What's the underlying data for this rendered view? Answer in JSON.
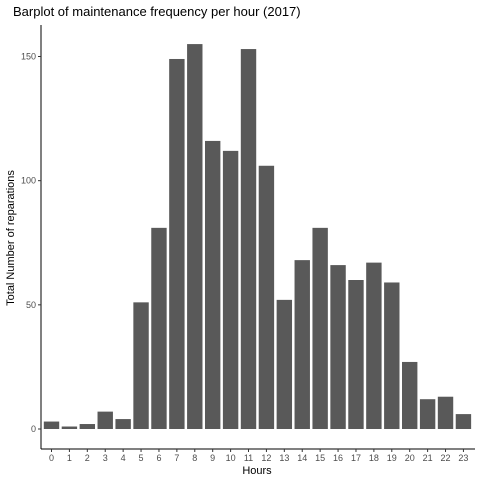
{
  "chart_data": {
    "type": "bar",
    "title": "Barplot of maintenance frequency per hour (2017)",
    "xlabel": "Hours",
    "ylabel": "Total Number of reparations",
    "categories": [
      "0",
      "1",
      "2",
      "3",
      "4",
      "5",
      "6",
      "7",
      "8",
      "9",
      "10",
      "11",
      "12",
      "13",
      "14",
      "15",
      "16",
      "17",
      "18",
      "19",
      "20",
      "21",
      "22",
      "23"
    ],
    "values": [
      3,
      1,
      2,
      7,
      4,
      51,
      81,
      149,
      155,
      116,
      112,
      153,
      106,
      52,
      68,
      81,
      66,
      60,
      67,
      59,
      27,
      12,
      13,
      6
    ],
    "yticks": [
      0,
      50,
      100,
      150
    ],
    "ylim": [
      0,
      158
    ],
    "grid": false,
    "bar_color": "#595959",
    "axis_color": "#000000",
    "tick_label_color": "#4d4d4d"
  }
}
